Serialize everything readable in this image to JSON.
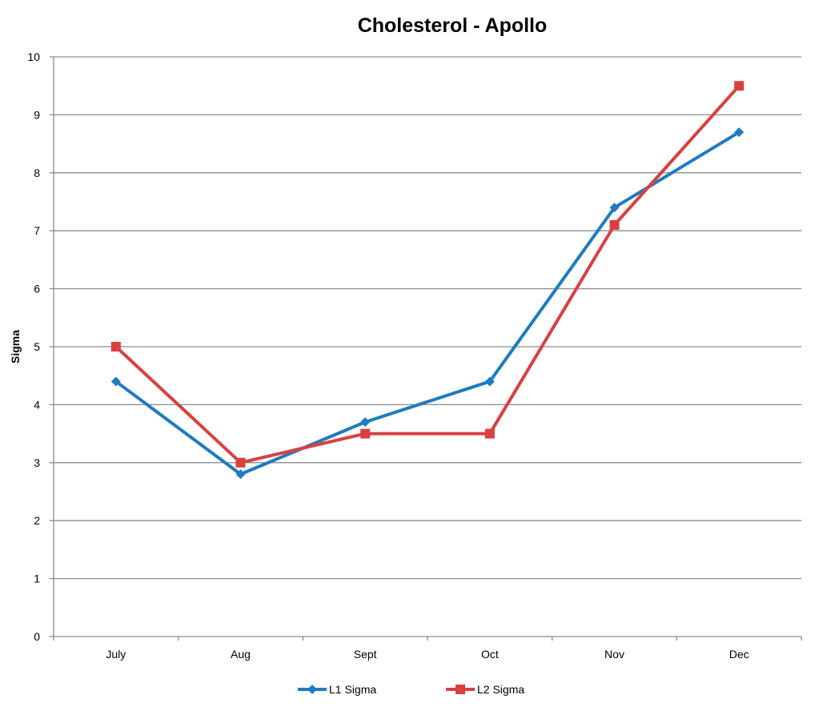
{
  "chart_data": {
    "type": "line",
    "title": "Cholesterol - Apollo",
    "xlabel": "",
    "ylabel": "Sigma",
    "categories": [
      "July",
      "Aug",
      "Sept",
      "Oct",
      "Nov",
      "Dec"
    ],
    "ylim": [
      0,
      10
    ],
    "yticks": [
      0,
      1,
      2,
      3,
      4,
      5,
      6,
      7,
      8,
      9,
      10
    ],
    "grid": true,
    "legend_position": "bottom",
    "series": [
      {
        "name": "L1 Sigma",
        "color": "#1F7BBF",
        "marker": "diamond",
        "values": [
          4.4,
          2.8,
          3.7,
          4.4,
          7.4,
          8.7
        ]
      },
      {
        "name": "L2 Sigma",
        "color": "#D9403F",
        "marker": "square",
        "values": [
          5.0,
          3.0,
          3.5,
          3.5,
          7.1,
          9.5
        ]
      }
    ]
  }
}
